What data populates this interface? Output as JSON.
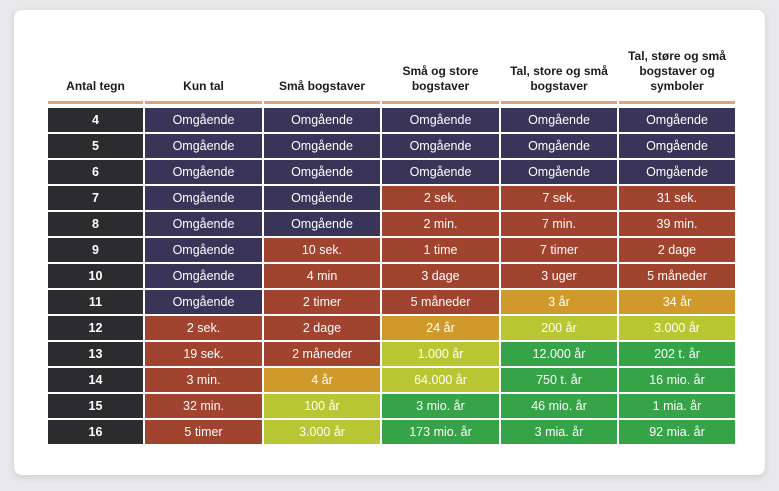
{
  "headers": [
    "Antal tegn",
    "Kun tal",
    "Små bogstaver",
    "Små og store bogstaver",
    "Tal, store og små bogstaver",
    "Tal, støre og små bogstaver og symboler"
  ],
  "rows": [
    {
      "chars": "4",
      "cells": [
        "Omgående",
        "Omgående",
        "Omgående",
        "Omgående",
        "Omgående"
      ]
    },
    {
      "chars": "5",
      "cells": [
        "Omgående",
        "Omgående",
        "Omgående",
        "Omgående",
        "Omgående"
      ]
    },
    {
      "chars": "6",
      "cells": [
        "Omgående",
        "Omgående",
        "Omgående",
        "Omgående",
        "Omgående"
      ]
    },
    {
      "chars": "7",
      "cells": [
        "Omgående",
        "Omgående",
        "2 sek.",
        "7 sek.",
        "31 sek."
      ]
    },
    {
      "chars": "8",
      "cells": [
        "Omgående",
        "Omgående",
        "2 min.",
        "7 min.",
        "39 min."
      ]
    },
    {
      "chars": "9",
      "cells": [
        "Omgående",
        "10 sek.",
        "1 time",
        "7 timer",
        "2 dage"
      ]
    },
    {
      "chars": "10",
      "cells": [
        "Omgående",
        "4 min",
        "3 dage",
        "3 uger",
        "5 måneder"
      ]
    },
    {
      "chars": "11",
      "cells": [
        "Omgående",
        "2 timer",
        "5 måneder",
        "3 år",
        "34 år"
      ]
    },
    {
      "chars": "12",
      "cells": [
        "2 sek.",
        "2 dage",
        "24 år",
        "200 år",
        "3.000 år"
      ]
    },
    {
      "chars": "13",
      "cells": [
        "19 sek.",
        "2 måneder",
        "1.000 år",
        "12.000 år",
        "202 t. år"
      ]
    },
    {
      "chars": "14",
      "cells": [
        "3 min.",
        "4 år",
        "64.000 år",
        "750 t. år",
        "16 mio. år"
      ]
    },
    {
      "chars": "15",
      "cells": [
        "32 min.",
        "100 år",
        "3 mio. år",
        "46 mio. år",
        "1 mia. år"
      ]
    },
    {
      "chars": "16",
      "cells": [
        "5 timer",
        "3.000 år",
        "173 mio. år",
        "3 mia. år",
        "92 mia. år"
      ]
    }
  ],
  "colors": {
    "instant": "#393458",
    "red": "#a0432f",
    "orange": "#cf9a2b",
    "yellow": "#b9c634",
    "green": "#37a348",
    "row_header": "#2c2c2e",
    "header_rule": "#e0a47a"
  },
  "cell_colors": [
    [
      "c-i",
      "c-i",
      "c-i",
      "c-i",
      "c-i"
    ],
    [
      "c-i",
      "c-i",
      "c-i",
      "c-i",
      "c-i"
    ],
    [
      "c-i",
      "c-i",
      "c-i",
      "c-i",
      "c-i"
    ],
    [
      "c-i",
      "c-i",
      "c-r",
      "c-r",
      "c-r"
    ],
    [
      "c-i",
      "c-i",
      "c-r",
      "c-r",
      "c-r"
    ],
    [
      "c-i",
      "c-r",
      "c-r",
      "c-r",
      "c-r"
    ],
    [
      "c-i",
      "c-r",
      "c-r",
      "c-r",
      "c-r"
    ],
    [
      "c-i",
      "c-r",
      "c-r",
      "c-o",
      "c-o"
    ],
    [
      "c-r",
      "c-r",
      "c-o",
      "c-y",
      "c-y"
    ],
    [
      "c-r",
      "c-r",
      "c-y",
      "c-g",
      "c-g"
    ],
    [
      "c-r",
      "c-o",
      "c-y",
      "c-g",
      "c-g"
    ],
    [
      "c-r",
      "c-y",
      "c-g",
      "c-g",
      "c-g"
    ],
    [
      "c-r",
      "c-y",
      "c-g",
      "c-g",
      "c-g"
    ]
  ]
}
